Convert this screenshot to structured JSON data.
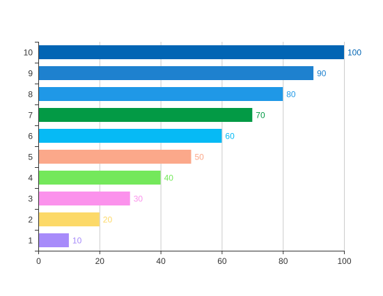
{
  "chart_data": {
    "type": "bar",
    "orientation": "horizontal",
    "categories": [
      "1",
      "2",
      "3",
      "4",
      "5",
      "6",
      "7",
      "8",
      "9",
      "10"
    ],
    "values": [
      10,
      20,
      30,
      40,
      50,
      60,
      70,
      80,
      90,
      100
    ],
    "colors": [
      "#a78bfa",
      "#fcd968",
      "#fb92ec",
      "#74e85b",
      "#fba88a",
      "#06baf5",
      "#039a45",
      "#1f98e7",
      "#1e81cf",
      "#0265b4"
    ],
    "xlim": [
      0,
      100
    ],
    "xticks": [
      0,
      20,
      40,
      60,
      80,
      100
    ],
    "title": "",
    "xlabel": "",
    "ylabel": "",
    "grid": "vertical",
    "data_labels": true
  }
}
